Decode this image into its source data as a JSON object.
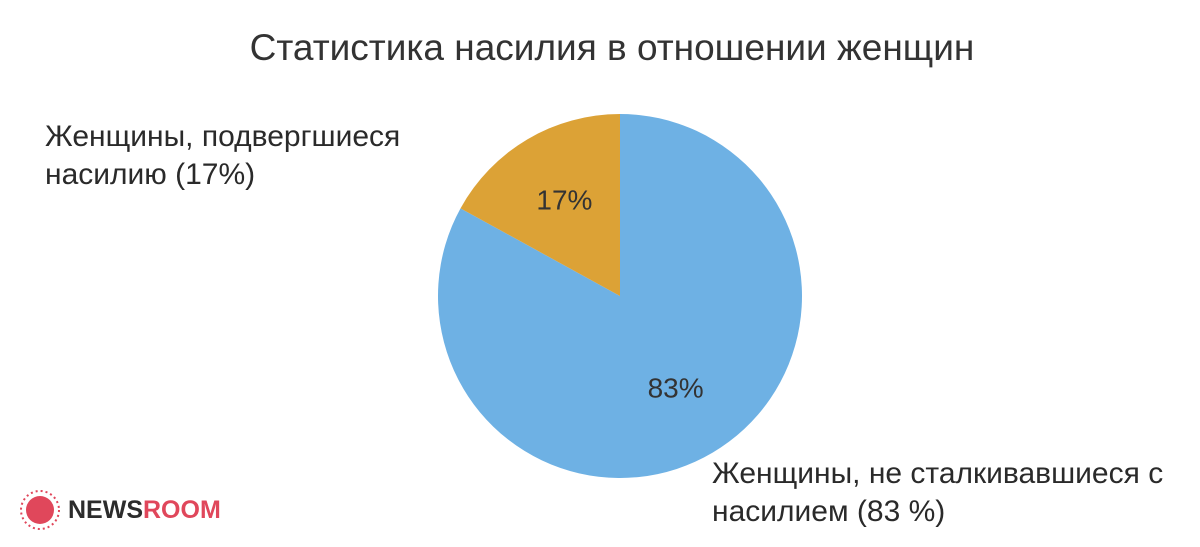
{
  "chart_data": {
    "type": "pie",
    "title": "Статистика насилия в отношении женщин",
    "categories": [
      "Женщины, не сталкивавшиеся с насилием (83 %)",
      "Женщины, подвергшиеся насилию (17%)"
    ],
    "values": [
      83,
      17
    ],
    "value_labels": [
      "83%",
      "17%"
    ],
    "colors": [
      "#6eb1e4",
      "#dca236"
    ],
    "start_angle": 0,
    "direction": "clockwise"
  },
  "watermark": [
    "NEWS",
    "ROOM"
  ]
}
